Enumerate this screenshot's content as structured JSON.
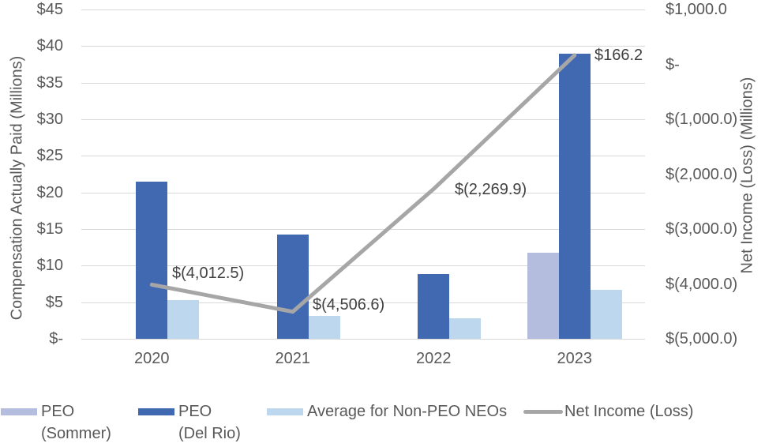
{
  "chart_data": {
    "type": "combo-bar-line",
    "categories": [
      "2020",
      "2021",
      "2022",
      "2023"
    ],
    "series": [
      {
        "name": "PEO\n(Sommer)",
        "type": "bar",
        "color": "#b4bdde",
        "values": [
          null,
          null,
          null,
          11.8
        ]
      },
      {
        "name": "PEO\n(Del Rio)",
        "type": "bar",
        "color": "#4169b2",
        "values": [
          21.5,
          14.2,
          8.8,
          39.0
        ]
      },
      {
        "name": "Average for Non-PEO NEOs",
        "type": "bar",
        "color": "#bdd8ee",
        "values": [
          5.3,
          3.1,
          2.8,
          6.7
        ]
      },
      {
        "name": "Net Income (Loss)",
        "type": "line",
        "axis": "right",
        "color": "#a6a6a6",
        "values": [
          -4012.5,
          -4506.6,
          -2269.9,
          166.2
        ],
        "data_labels": [
          "$(4,012.5)",
          "$(4,506.6)",
          "$(2,269.9)",
          "$166.2"
        ]
      }
    ],
    "left_axis": {
      "title": "Compensation Actually Paid (Millions)",
      "min": 0,
      "max": 45,
      "step": 5,
      "tick_labels": [
        "$45",
        "$40",
        "$35",
        "$30",
        "$25",
        "$20",
        "$15",
        "$10",
        "$5",
        "$-"
      ]
    },
    "right_axis": {
      "title": "Net Income  (Loss) (Millions)",
      "min": -5000,
      "max": 1000,
      "step": 1000,
      "tick_labels": [
        "$1,000.0",
        "$-",
        "$(1,000.0)",
        "$(2,000.0)",
        "$(3,000.0)",
        "$(4,000.0)",
        "$(5,000.0)"
      ]
    },
    "grid": true,
    "legend_position": "bottom"
  },
  "colors": {
    "background": "#ffffff",
    "gridline": "#d9d9d9",
    "axis_text": "#595959",
    "data_label_text": "#404040",
    "bar_peo_sommer": "#b4bdde",
    "bar_peo_del_rio": "#4169b2",
    "bar_non_peo_neos": "#bdd8ee",
    "net_income_line": "#a6a6a6"
  }
}
